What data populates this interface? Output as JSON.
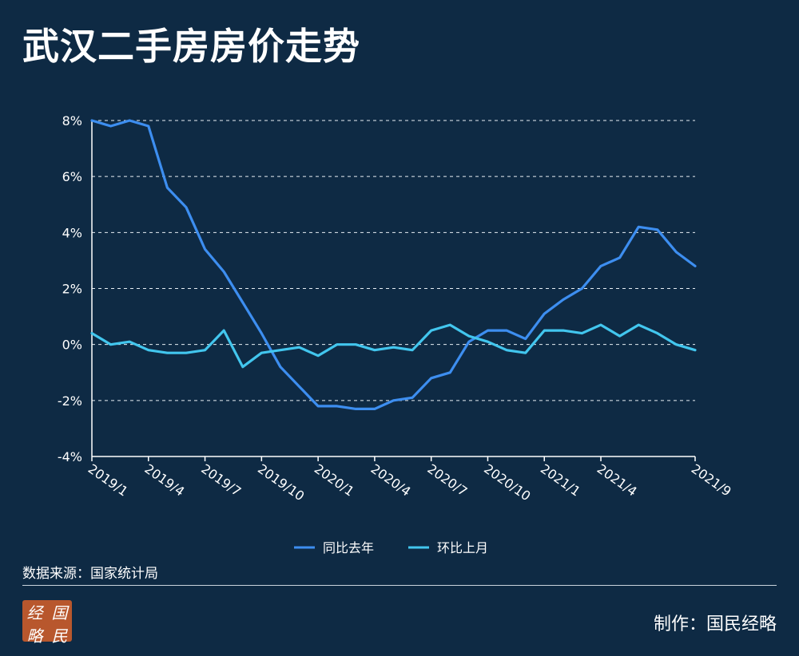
{
  "title": "武汉二手房房价走势",
  "source": "数据来源：国家统计局",
  "credit": "制作：国民经略",
  "logo": {
    "chars": [
      "经",
      "国",
      "略",
      "民"
    ],
    "color": "#b8572d"
  },
  "chart_data": {
    "type": "line",
    "title": "武汉二手房房价走势",
    "xlabel": "",
    "ylabel": "",
    "ylim": [
      -4,
      8
    ],
    "yticks": [
      "-4%",
      "-2%",
      "0%",
      "2%",
      "4%",
      "6%",
      "8%"
    ],
    "ytick_values": [
      -4,
      -2,
      0,
      2,
      4,
      6,
      8
    ],
    "grid": true,
    "legend_position": "bottom",
    "x": [
      "2019/1",
      "2019/2",
      "2019/3",
      "2019/4",
      "2019/5",
      "2019/6",
      "2019/7",
      "2019/8",
      "2019/9",
      "2019/10",
      "2019/11",
      "2019/12",
      "2020/1",
      "2020/2",
      "2020/3",
      "2020/4",
      "2020/5",
      "2020/6",
      "2020/7",
      "2020/8",
      "2020/9",
      "2020/10",
      "2020/11",
      "2020/12",
      "2021/1",
      "2021/2",
      "2021/3",
      "2021/4",
      "2021/5",
      "2021/6",
      "2021/7",
      "2021/8",
      "2021/9"
    ],
    "xtick_labels": [
      "2019/1",
      "2019/4",
      "2019/7",
      "2019/10",
      "2020/1",
      "2020/4",
      "2020/7",
      "2020/10",
      "2021/1",
      "2021/4",
      "2021/9"
    ],
    "series": [
      {
        "name": "同比去年",
        "color": "#3d8ef0",
        "values": [
          8.0,
          7.8,
          8.0,
          7.8,
          5.6,
          4.9,
          3.4,
          2.6,
          1.5,
          0.4,
          -0.8,
          -1.5,
          -2.2,
          -2.2,
          -2.3,
          -2.3,
          -2.0,
          -1.9,
          -1.2,
          -1.0,
          0.1,
          0.5,
          0.5,
          0.2,
          1.1,
          1.6,
          2.0,
          2.8,
          3.1,
          4.2,
          4.1,
          3.3,
          2.8
        ]
      },
      {
        "name": "环比上月",
        "color": "#42c6ee",
        "values": [
          0.4,
          0.0,
          0.1,
          -0.2,
          -0.3,
          -0.3,
          -0.2,
          0.5,
          -0.8,
          -0.3,
          -0.2,
          -0.1,
          -0.4,
          0.0,
          0.0,
          -0.2,
          -0.1,
          -0.2,
          0.5,
          0.7,
          0.3,
          0.1,
          -0.2,
          -0.3,
          0.5,
          0.5,
          0.4,
          0.7,
          0.3,
          0.7,
          0.4,
          0.0,
          -0.2
        ]
      }
    ]
  }
}
